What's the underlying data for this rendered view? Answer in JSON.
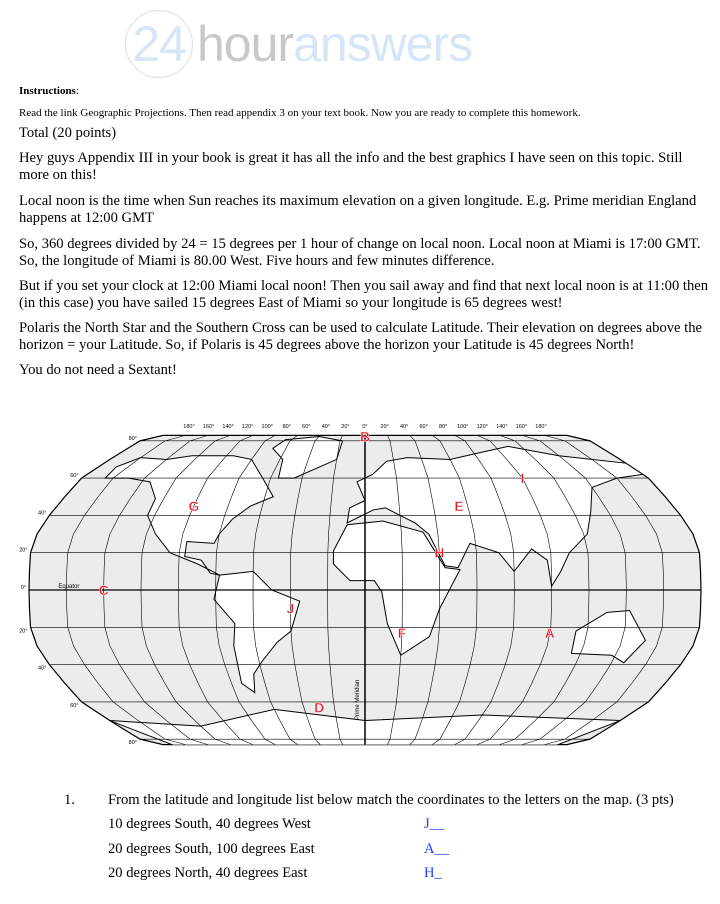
{
  "logo": {
    "num": "24",
    "hour": "hour",
    "answers": "answers"
  },
  "instructions_label": "Instructions",
  "instructions_colon": ":",
  "instructions_text": "Read the link Geographic Projections. Then read appendix 3 on your text book. Now you are ready to complete this homework.",
  "paragraphs": [
    "Total (20 points)",
    "Hey guys Appendix III in your book is great it has all the info and the best graphics I have seen on this topic. Still more on this!",
    "Local noon is the time when Sun reaches its maximum elevation on a given longitude. E.g. Prime meridian England happens at 12:00 GMT",
    "So, 360 degrees divided by 24 = 15 degrees per 1 hour of change on local noon. Local noon at Miami is 17:00 GMT. So, the longitude of Miami is 80.00 West. Five hours and few minutes difference.",
    "But if you set your clock at 12:00 Miami local noon! Then you sail away and find that next local noon is at 11:00 then (in this case) you have sailed 15 degrees East of Miami so your longitude is 65 degrees west!",
    "Polaris the North Star and the Southern Cross can be used to calculate Latitude. Their elevation on degrees above the horizon = your Latitude. So, if Polaris is 45 degrees above the horizon your Latitude is 45 degrees North!",
    "You do not need a Sextant!"
  ],
  "map": {
    "lon_labels": [
      "180°",
      "160°",
      "140°",
      "120°",
      "100°",
      "80°",
      "60°",
      "40°",
      "20°",
      "0°",
      "20°",
      "40°",
      "60°",
      "80°",
      "100°",
      "120°",
      "140°",
      "160°",
      "180°"
    ],
    "lat_labels": [
      {
        "t": "80°",
        "lat": 80
      },
      {
        "t": "60°",
        "lat": 60
      },
      {
        "t": "40°",
        "lat": 40
      },
      {
        "t": "20°",
        "lat": 20
      },
      {
        "t": "0°",
        "lat": 0
      },
      {
        "t": "20°",
        "lat": -20
      },
      {
        "t": "40°",
        "lat": -40
      },
      {
        "t": "60°",
        "lat": -60
      },
      {
        "t": "80°",
        "lat": -80
      }
    ],
    "equator": "Equator",
    "prime_meridian": "Prime Meridian",
    "letters": [
      {
        "t": "B",
        "lon": 0,
        "lat": 84
      },
      {
        "t": "I",
        "lon": 100,
        "lat": 60
      },
      {
        "t": "G",
        "lon": -100,
        "lat": 45
      },
      {
        "t": "E",
        "lon": 55,
        "lat": 45
      },
      {
        "t": "H",
        "lon": 40,
        "lat": 20
      },
      {
        "t": "C",
        "lon": -140,
        "lat": 0
      },
      {
        "t": "J",
        "lon": -40,
        "lat": -10
      },
      {
        "t": "F",
        "lon": 20,
        "lat": -23
      },
      {
        "t": "A",
        "lon": 100,
        "lat": -23
      },
      {
        "t": "D",
        "lon": -30,
        "lat": -63
      }
    ],
    "letter_color": "#e8141c"
  },
  "question": {
    "number": "1.",
    "prompt": "From the latitude and longitude list below match the coordinates to the letters on the map. (3 pts)",
    "items": [
      {
        "text": "10 degrees South, 40 degrees West",
        "answer": "J__"
      },
      {
        "text": "20 degrees South, 100 degrees East",
        "answer": "A__"
      },
      {
        "text": "20 degrees North, 40 degrees East",
        "answer": "H_"
      }
    ]
  }
}
